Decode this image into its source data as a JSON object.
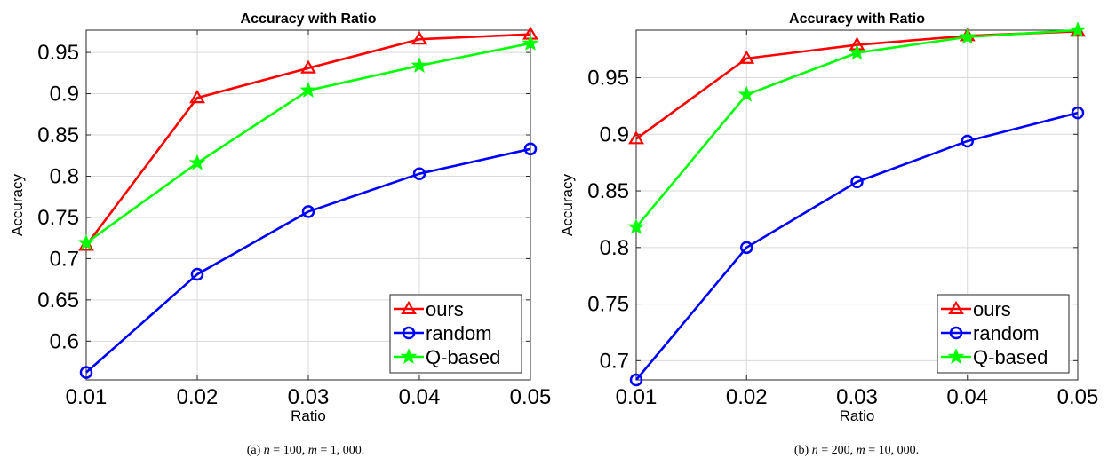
{
  "chart_data": [
    {
      "type": "line",
      "title": "Accuracy with Ratio",
      "xlabel": "Ratio",
      "ylabel": "Accuracy",
      "x": [
        0.01,
        0.02,
        0.03,
        0.04,
        0.05
      ],
      "xticks": [
        "0.01",
        "0.02",
        "0.03",
        "0.04",
        "0.05"
      ],
      "yticks": [
        0.6,
        0.65,
        0.7,
        0.75,
        0.8,
        0.85,
        0.9,
        0.95
      ],
      "ytick_labels": [
        "0.6",
        "0.65",
        "0.7",
        "0.75",
        "0.8",
        "0.85",
        "0.9",
        "0.95"
      ],
      "xlim": [
        0.01,
        0.05
      ],
      "ylim": [
        0.553,
        0.977
      ],
      "grid": true,
      "legend_position": "bottom-right",
      "series": [
        {
          "name": "ours",
          "color": "#ff0000",
          "marker": "triangle",
          "values": [
            0.716,
            0.895,
            0.931,
            0.966,
            0.972
          ]
        },
        {
          "name": "random",
          "color": "#0000ff",
          "marker": "circle",
          "values": [
            0.562,
            0.681,
            0.757,
            0.803,
            0.833
          ]
        },
        {
          "name": "Q-based",
          "color": "#00ff00",
          "marker": "star",
          "values": [
            0.719,
            0.816,
            0.904,
            0.934,
            0.961
          ]
        }
      ],
      "caption": {
        "label": "(a)",
        "var1": "n",
        "val1": " = 100, ",
        "var2": "m",
        "val2": " = 1, 000."
      }
    },
    {
      "type": "line",
      "title": "Accuracy with Ratio",
      "xlabel": "Ratio",
      "ylabel": "Accuracy",
      "x": [
        0.01,
        0.02,
        0.03,
        0.04,
        0.05
      ],
      "xticks": [
        "0.01",
        "0.02",
        "0.03",
        "0.04",
        "0.05"
      ],
      "yticks": [
        0.7,
        0.75,
        0.8,
        0.85,
        0.9,
        0.95
      ],
      "ytick_labels": [
        "0.7",
        "0.75",
        "0.8",
        "0.85",
        "0.9",
        "0.95"
      ],
      "xlim": [
        0.01,
        0.05
      ],
      "ylim": [
        0.683,
        0.992
      ],
      "grid": true,
      "legend_position": "bottom-right",
      "series": [
        {
          "name": "ours",
          "color": "#ff0000",
          "marker": "triangle",
          "values": [
            0.896,
            0.967,
            0.979,
            0.987,
            0.991
          ]
        },
        {
          "name": "random",
          "color": "#0000ff",
          "marker": "circle",
          "values": [
            0.683,
            0.8,
            0.858,
            0.894,
            0.919
          ]
        },
        {
          "name": "Q-based",
          "color": "#00ff00",
          "marker": "star",
          "values": [
            0.818,
            0.935,
            0.972,
            0.986,
            0.992
          ]
        }
      ],
      "caption": {
        "label": "(b)",
        "var1": "n",
        "val1": " = 200, ",
        "var2": "m",
        "val2": " = 10, 000."
      }
    }
  ]
}
